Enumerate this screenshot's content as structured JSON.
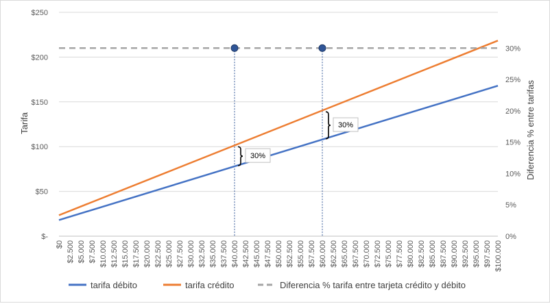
{
  "chart_data": {
    "type": "line",
    "ylabel_left": "Tarifa",
    "ylabel_right": "Diferencia % entre tarifas",
    "left_axis": {
      "min": 0,
      "max": 250,
      "ticks": [
        0,
        50,
        100,
        150,
        200,
        250
      ],
      "tick_labels": [
        "$-",
        "$50",
        "$100",
        "$150",
        "$200",
        "$250"
      ]
    },
    "right_axis": {
      "min": 0,
      "max": 0.3571,
      "ticks": [
        0,
        0.05,
        0.1,
        0.15,
        0.2,
        0.25,
        0.3
      ],
      "tick_labels": [
        "0%",
        "5%",
        "10%",
        "15%",
        "20%",
        "25%",
        "30%"
      ]
    },
    "x_axis": {
      "min": 0,
      "max": 100000,
      "ticks": [
        0,
        2500,
        5000,
        7500,
        10000,
        12500,
        15000,
        17500,
        20000,
        22500,
        25000,
        27500,
        30000,
        32500,
        35000,
        37500,
        40000,
        42500,
        45000,
        47500,
        50000,
        52500,
        55000,
        57500,
        60000,
        62500,
        65000,
        67500,
        70000,
        72500,
        75000,
        77500,
        80000,
        82500,
        85000,
        87500,
        90000,
        92500,
        95000,
        97500,
        100000
      ],
      "tick_labels": [
        "$0",
        "$2.500",
        "$5.000",
        "$7.500",
        "$10.000",
        "$12.500",
        "$15.000",
        "$17.500",
        "$20.000",
        "$22.500",
        "$25.000",
        "$27.500",
        "$30.000",
        "$32.500",
        "$35.000",
        "$37.500",
        "$40.000",
        "$42.500",
        "$45.000",
        "$47.500",
        "$50.000",
        "$52.500",
        "$55.000",
        "$57.500",
        "$60.000",
        "$62.500",
        "$65.000",
        "$67.500",
        "$70.000",
        "$72.500",
        "$75.000",
        "$77.500",
        "$80.000",
        "$82.500",
        "$85.000",
        "$87.500",
        "$90.000",
        "$92.500",
        "$95.000",
        "$97.500",
        "$100.000"
      ]
    },
    "grid": true,
    "legend_position": "bottom",
    "series": [
      {
        "name": "tarifa débito",
        "axis": "left",
        "color": "#4472C4",
        "x": [
          0,
          100000
        ],
        "values": [
          18,
          168
        ]
      },
      {
        "name": "tarifa crédito",
        "axis": "left",
        "color": "#ED7D31",
        "x": [
          0,
          100000
        ],
        "values": [
          23.4,
          218.4
        ]
      },
      {
        "name": "Diferencia % tarifa entre tarjeta crédito y débito",
        "axis": "right",
        "color": "#A5A5A5",
        "dashed": true,
        "x": [
          0,
          100000
        ],
        "values": [
          0.3,
          0.3
        ]
      }
    ],
    "markers": [
      {
        "x": 40000,
        "y": 0.3,
        "axis": "right",
        "color": "#2F5597"
      },
      {
        "x": 60000,
        "y": 0.3,
        "axis": "right",
        "color": "#2F5597"
      }
    ],
    "reference_lines": [
      {
        "x": 40000,
        "color": "#2F5597",
        "dotted": true
      },
      {
        "x": 60000,
        "color": "#2F5597",
        "dotted": true
      }
    ],
    "annotations": [
      {
        "text": "30%",
        "x": 40000,
        "y_low": 78,
        "y_high": 101.4
      },
      {
        "text": "30%",
        "x": 60000,
        "y_low": 108,
        "y_high": 140.4
      }
    ]
  }
}
